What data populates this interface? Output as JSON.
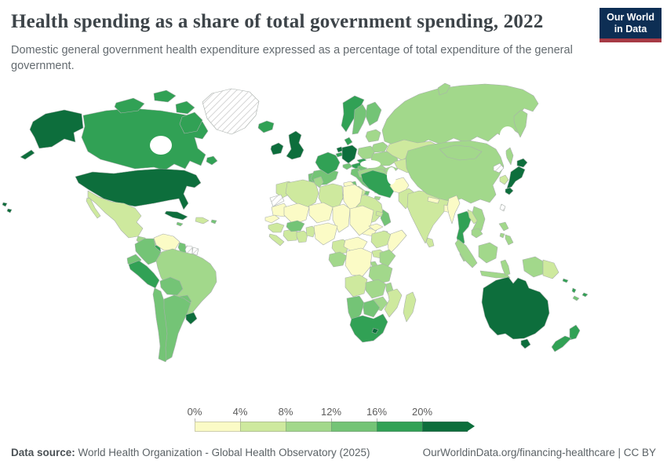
{
  "header": {
    "title": "Health spending as a share of total government spending, 2022",
    "subtitle": "Domestic general government health expenditure expressed as a percentage of total expenditure of the general government.",
    "logo": {
      "line1": "Our World",
      "line2": "in Data",
      "bg_color": "#0d2e54",
      "accent_color": "#a73a45"
    }
  },
  "footer": {
    "source_label": "Data source:",
    "source": "World Health Organization - Global Health Observatory (2025)",
    "credit": "OurWorldinData.org/financing-healthcare | CC BY"
  },
  "chart_data": {
    "type": "choropleth-map",
    "title": "Health spending as a share of total government spending",
    "year": "2022",
    "unit": "%",
    "legend": {
      "ticks": [
        "0%",
        "4%",
        "8%",
        "12%",
        "16%",
        "20%"
      ],
      "bins": [
        {
          "range": "0-4%",
          "color": "#fbfbc6"
        },
        {
          "range": "4-8%",
          "color": "#cee99e"
        },
        {
          "range": "8-12%",
          "color": "#a2d88b"
        },
        {
          "range": "12-16%",
          "color": "#74c476"
        },
        {
          "range": "16-20%",
          "color": "#31a155"
        },
        {
          "range": "20%+",
          "color": "#0d6e3c"
        }
      ],
      "no_data_pattern": "gray-diagonal-hatch"
    },
    "countries": {
      "United States": "20%+",
      "Canada": "16-20%",
      "Greenland": "no-data",
      "Iceland": "16-20%",
      "Mexico": "4-8%",
      "Guatemala": "8-12%",
      "Honduras": "8-12%",
      "El Salvador": "12-16%",
      "Nicaragua": "16-20%",
      "Costa Rica": "20%+",
      "Panama": "12-16%",
      "Cuba": "20%+",
      "Dominican Republic": "4-8%",
      "Jamaica": "12-16%",
      "Puerto Rico": "12-16%",
      "Venezuela": "0-4%",
      "Colombia": "12-16%",
      "Guyana": "12-16%",
      "Suriname": "no-data",
      "French Guiana": "no-data",
      "Ecuador": "12-16%",
      "Peru": "16-20%",
      "Brazil": "8-12%",
      "Bolivia": "12-16%",
      "Paraguay": "12-16%",
      "Chile": "12-16%",
      "Argentina": "12-16%",
      "Uruguay": "20%+",
      "Ireland": "20%+",
      "United Kingdom": "20%+",
      "Portugal": "12-16%",
      "Spain": "12-16%",
      "France": "16-20%",
      "Belgium": "16-20%",
      "Netherlands": "20%+",
      "Germany": "20%+",
      "Denmark": "16-20%",
      "Norway": "16-20%",
      "Sweden": "12-16%",
      "Finland": "12-16%",
      "Switzerland": "12-16%",
      "Austria": "16-20%",
      "Czechia": "16-20%",
      "Italy": "12-16%",
      "Poland": "8-12%",
      "Baltic states": "8-12%",
      "Belarus": "8-12%",
      "Ukraine": "8-12%",
      "Hungary": "8-12%",
      "Romania": "8-12%",
      "Serbia": "8-12%",
      "Croatia": "12-16%",
      "Bulgaria": "4-8%",
      "Greece": "8-12%",
      "Russia": "8-12%",
      "Georgia": "8-12%",
      "Turkey": "8-12%",
      "Syria": "0-4%",
      "Iraq": "4-8%",
      "Israel": "12-16%",
      "Jordan": "4-8%",
      "Saudi Arabia": "4-8%",
      "Yemen": "0-4%",
      "Oman": "12-16%",
      "United Arab Emirates": "4-8%",
      "Iran": "16-20%",
      "Afghanistan": "0-4%",
      "Pakistan": "4-8%",
      "India": "4-8%",
      "Nepal": "0-4%",
      "Bangladesh": "0-4%",
      "Sri Lanka": "4-8%",
      "Myanmar": "0-4%",
      "Thailand": "16-20%",
      "Laos": "4-8%",
      "Vietnam": "8-12%",
      "Cambodia": "8-12%",
      "Malaysia": "8-12%",
      "Indonesia": "8-12%",
      "Papua New Guinea": "4-8%",
      "Philippines": "8-12%",
      "China": "8-12%",
      "Mongolia": "8-12%",
      "North Korea": "no-data",
      "South Korea": "4-8%",
      "Taiwan": "no-data",
      "Japan": "20%+",
      "Kazakhstan": "4-8%",
      "Uzbekistan": "4-8%",
      "Kyrgyzstan": "4-8%",
      "Morocco": "4-8%",
      "Western Sahara": "no-data",
      "Algeria": "4-8%",
      "Tunisia": "8-12%",
      "Libya": "4-8%",
      "Egypt": "0-4%",
      "Mauritania": "0-4%",
      "Mali": "0-4%",
      "Niger": "0-4%",
      "Chad": "0-4%",
      "Sudan": "0-4%",
      "Eritrea": "0-4%",
      "Djibouti": "4-8%",
      "Ethiopia": "4-8%",
      "Somalia": "0-4%",
      "Senegal": "0-4%",
      "Guinea": "4-8%",
      "Sierra Leone": "4-8%",
      "Cote d'Ivoire": "4-8%",
      "Ghana": "4-8%",
      "Burkina Faso": "12-16%",
      "Benin": "4-8%",
      "Nigeria": "0-4%",
      "Cameroon": "4-8%",
      "Central African Republic": "0-4%",
      "Gabon": "8-12%",
      "Democratic Republic of Congo": "0-4%",
      "Uganda": "4-8%",
      "Kenya": "8-12%",
      "Rwanda": "8-12%",
      "Tanzania": "8-12%",
      "Angola": "4-8%",
      "Zambia": "8-12%",
      "Malawi": "8-12%",
      "Mozambique": "4-8%",
      "Zimbabwe": "8-12%",
      "Botswana": "12-16%",
      "Namibia": "12-16%",
      "South Africa": "16-20%",
      "Lesotho": "20%+",
      "Madagascar": "4-8%",
      "Australia": "20%+",
      "New Zealand": "16-20%",
      "Solomon Islands": "16-20%",
      "Vanuatu": "16-20%",
      "Fiji": "16-20%",
      "New Caledonia": "12-16%"
    }
  }
}
